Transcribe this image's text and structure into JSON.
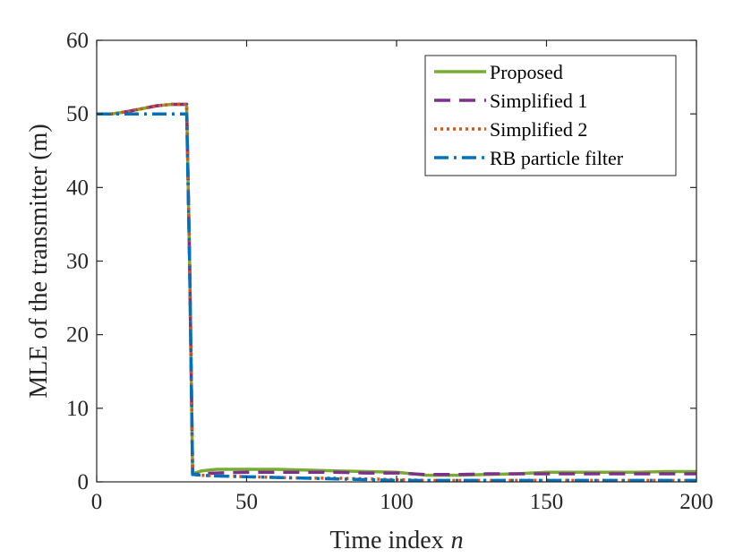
{
  "chart_data": {
    "type": "line",
    "xlabel": "Time index",
    "xlabel_var": "n",
    "ylabel": "MLE of the transmitter (m)",
    "xlim": [
      0,
      200
    ],
    "ylim": [
      0,
      60
    ],
    "xticks": [
      0,
      50,
      100,
      150,
      200
    ],
    "yticks": [
      0,
      10,
      20,
      30,
      40,
      50,
      60
    ],
    "grid": false,
    "legend_position": "top-right",
    "series": [
      {
        "name": "Proposed",
        "color": "#77ac30",
        "style": "solid",
        "x": [
          0,
          5,
          10,
          15,
          20,
          25,
          30,
          31,
          32,
          35,
          40,
          50,
          60,
          70,
          80,
          90,
          100,
          110,
          120,
          130,
          140,
          150,
          160,
          170,
          180,
          190,
          200
        ],
        "y": [
          50,
          50,
          50.3,
          50.7,
          51.1,
          51.3,
          51.3,
          30,
          1.1,
          1.5,
          1.7,
          1.7,
          1.7,
          1.6,
          1.5,
          1.4,
          1.3,
          0.9,
          0.9,
          1.0,
          1.1,
          1.3,
          1.3,
          1.3,
          1.3,
          1.4,
          1.4
        ]
      },
      {
        "name": "Simplified 1",
        "color": "#7e2f8e",
        "style": "dash",
        "x": [
          0,
          5,
          10,
          15,
          20,
          25,
          30,
          31,
          32,
          35,
          40,
          50,
          60,
          70,
          80,
          90,
          100,
          110,
          120,
          130,
          140,
          150,
          160,
          170,
          180,
          190,
          200
        ],
        "y": [
          50,
          50,
          50.3,
          50.7,
          51.1,
          51.3,
          51.3,
          30,
          1.0,
          1.1,
          1.2,
          1.3,
          1.3,
          1.3,
          1.3,
          1.2,
          1.2,
          1.0,
          1.0,
          1.1,
          1.1,
          1.1,
          1.1,
          1.1,
          1.1,
          1.1,
          1.1
        ]
      },
      {
        "name": "Simplified 2",
        "color": "#d95319",
        "style": "dot",
        "x": [
          0,
          5,
          10,
          15,
          20,
          25,
          30,
          31,
          32,
          35,
          40,
          50,
          60,
          70,
          80,
          90,
          100,
          110,
          120,
          130,
          140,
          150,
          160,
          170,
          180,
          190,
          200
        ],
        "y": [
          50,
          50,
          50.3,
          50.7,
          51.1,
          51.3,
          51.3,
          30,
          1.0,
          0.9,
          0.8,
          0.7,
          0.6,
          0.5,
          0.5,
          0.4,
          0.3,
          0.2,
          0.2,
          0.2,
          0.2,
          0.2,
          0.2,
          0.2,
          0.2,
          0.2,
          0.2
        ]
      },
      {
        "name": "RB particle filter",
        "color": "#0072bd",
        "style": "dashdot",
        "x": [
          0,
          10,
          20,
          30,
          31,
          32,
          35,
          40,
          50,
          60,
          70,
          80,
          90,
          100,
          110,
          120,
          130,
          140,
          150,
          160,
          170,
          180,
          190,
          200
        ],
        "y": [
          50,
          50,
          50,
          50,
          30,
          1.0,
          0.9,
          0.8,
          0.7,
          0.6,
          0.5,
          0.4,
          0.3,
          0.2,
          0.2,
          0.2,
          0.2,
          0.2,
          0.2,
          0.2,
          0.2,
          0.2,
          0.2,
          0.2
        ]
      }
    ]
  }
}
